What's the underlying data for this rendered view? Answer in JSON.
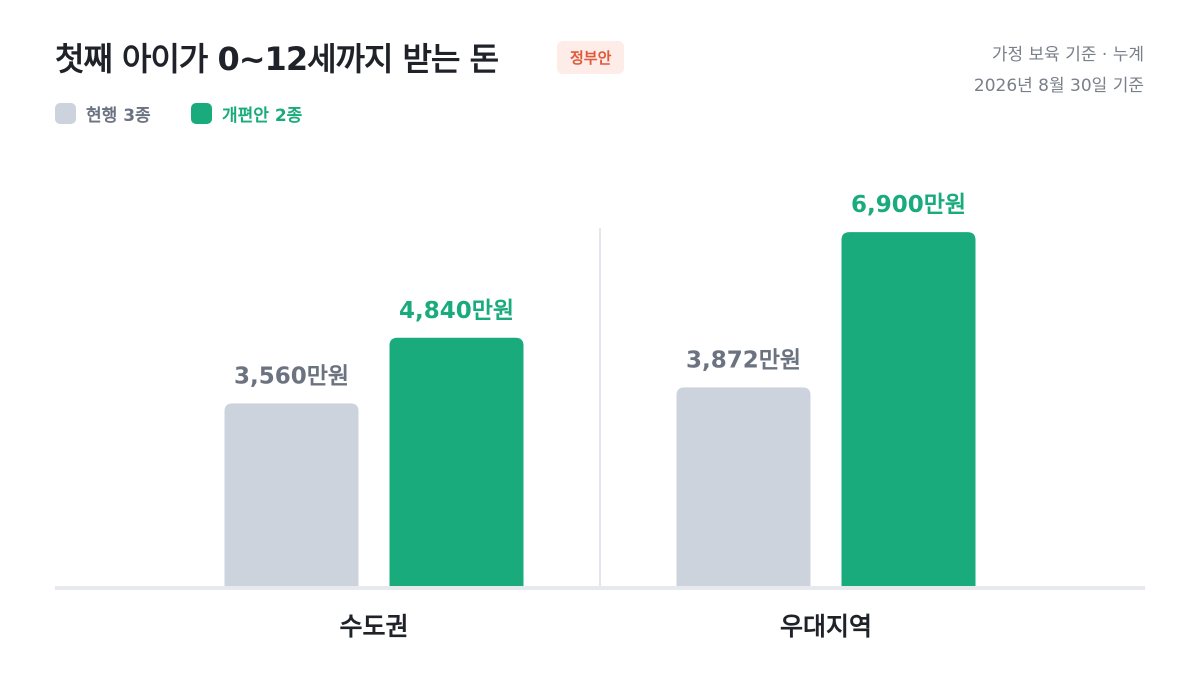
{
  "header": {
    "title": "첫째 아이가 0~12세까지 받는 돈",
    "badge": "정부안",
    "meta_line1": "가정 보육 기준 · 누계",
    "meta_line2": "2026년 8월 30일 기준"
  },
  "legend": {
    "current_label": "현행 3종",
    "reform_label": "개편안 2종",
    "current_color": "#cdd3dd",
    "reform_color": "#1aab7c"
  },
  "chart_data": {
    "type": "bar",
    "title": "첫째 아이가 0~12세까지 받는 돈",
    "categories": [
      "수도권",
      "우대지역"
    ],
    "series": [
      {
        "name": "현행 3종",
        "values": [
          3560,
          3872
        ],
        "labels": [
          "3,560만원",
          "3,872만원"
        ],
        "color": "#cdd3dd",
        "label_color": "#6b7280"
      },
      {
        "name": "개편안 2종",
        "values": [
          4840,
          6900
        ],
        "labels": [
          "4,840만원",
          "6,900만원"
        ],
        "color": "#1aab7c",
        "label_color": "#1aab7c"
      }
    ],
    "ylim": [
      0,
      7000
    ],
    "grid": false
  }
}
